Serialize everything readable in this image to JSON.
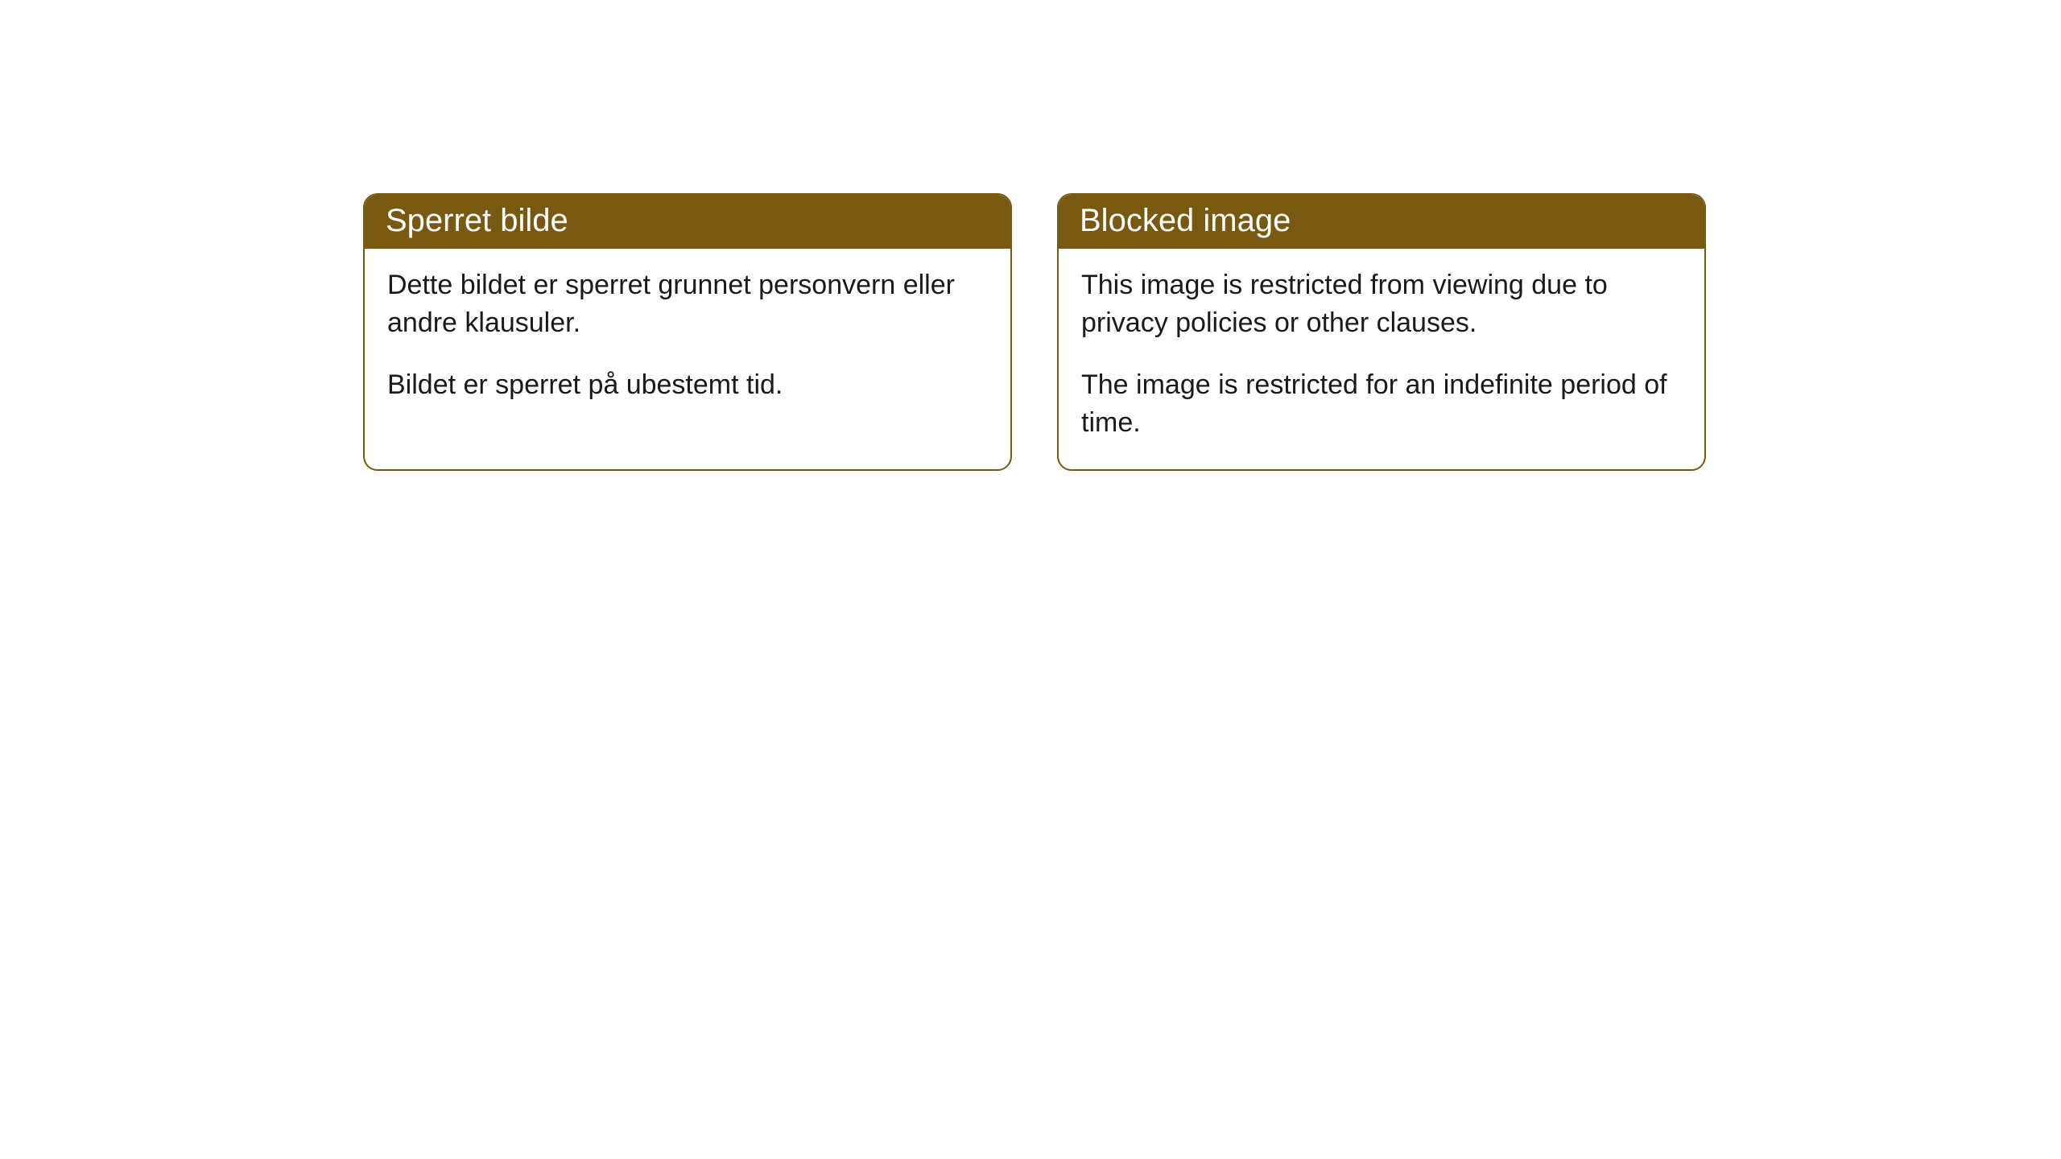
{
  "cards": [
    {
      "title": "Sperret bilde",
      "paragraph1": "Dette bildet er sperret grunnet personvern eller andre klausuler.",
      "paragraph2": "Bildet er sperret på ubestemt tid."
    },
    {
      "title": "Blocked image",
      "paragraph1": "This image is restricted from viewing due to privacy policies or other clauses.",
      "paragraph2": "The image is restricted for an indefinite period of time."
    }
  ],
  "style": {
    "header_bg_color": "#785912",
    "header_text_color": "#ffffff",
    "border_color": "#785912",
    "body_bg_color": "#ffffff",
    "body_text_color": "#1a1a1a",
    "border_radius": 18,
    "header_fontsize": 40,
    "body_fontsize": 34
  }
}
